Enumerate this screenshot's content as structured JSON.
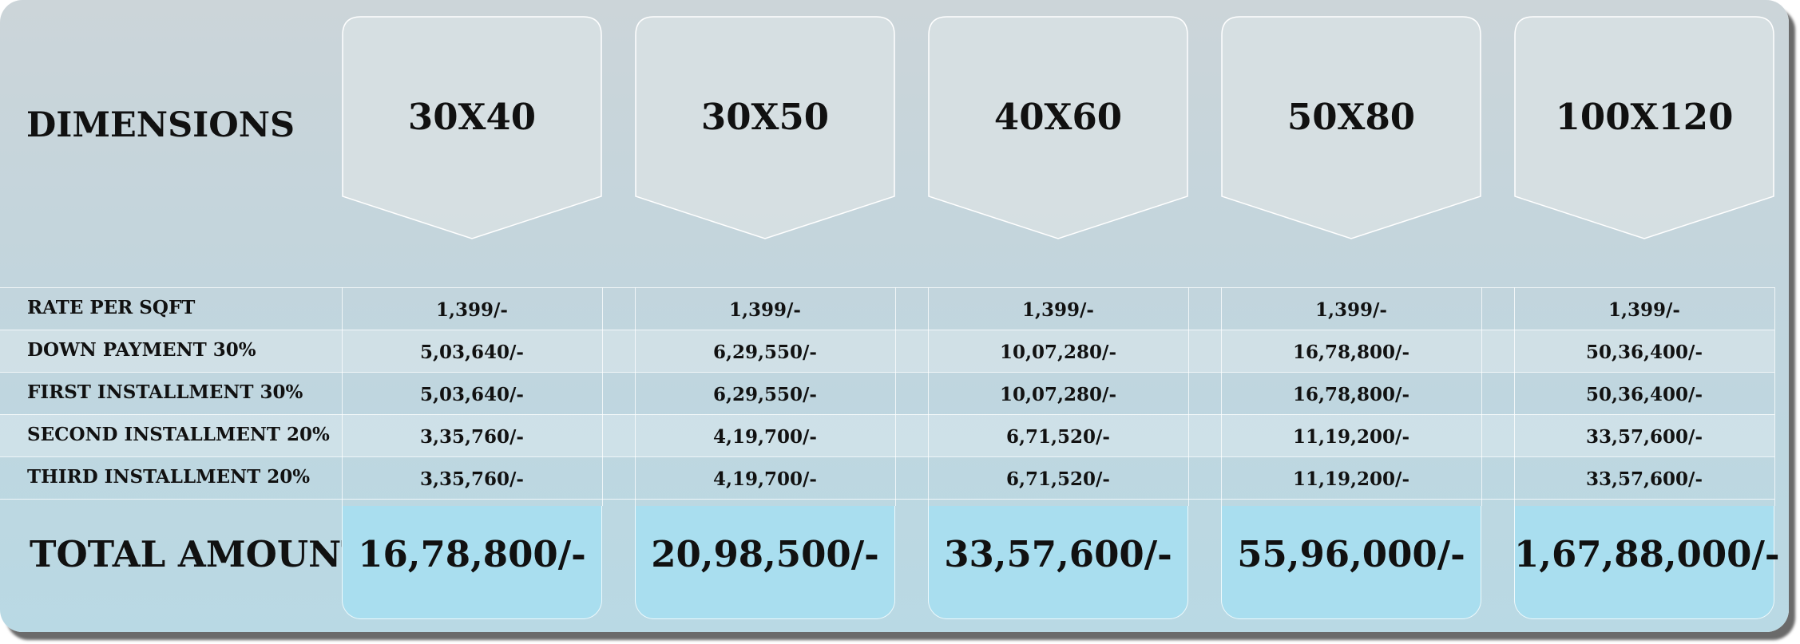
{
  "header": {
    "label": "DIMENSIONS",
    "columns": [
      "30X40",
      "30X50",
      "40X60",
      "50X80",
      "100X120"
    ]
  },
  "rows": [
    {
      "label": "RATE PER SQFT",
      "values": [
        "1,399/-",
        "1,399/-",
        "1,399/-",
        "1,399/-",
        "1,399/-"
      ]
    },
    {
      "label": "DOWN PAYMENT 30%",
      "values": [
        "5,03,640/-",
        "6,29,550/-",
        "10,07,280/-",
        "16,78,800/-",
        "50,36,400/-"
      ]
    },
    {
      "label": "FIRST INSTALLMENT 30%",
      "values": [
        "5,03,640/-",
        "6,29,550/-",
        "10,07,280/-",
        "16,78,800/-",
        "50,36,400/-"
      ]
    },
    {
      "label": "SECOND INSTALLMENT 20%",
      "values": [
        "3,35,760/-",
        "4,19,700/-",
        "6,71,520/-",
        "11,19,200/-",
        "33,57,600/-"
      ]
    },
    {
      "label": "THIRD INSTALLMENT 20%",
      "values": [
        "3,35,760/-",
        "4,19,700/-",
        "6,71,520/-",
        "11,19,200/-",
        "33,57,600/-"
      ]
    }
  ],
  "total": {
    "label": "TOTAL AMOUNT",
    "values": [
      "16,78,800/-",
      "20,98,500/-",
      "33,57,600/-",
      "55,96,000/-",
      "1,67,88,000/-"
    ]
  },
  "colors": {
    "total_fill": "#a9deef",
    "arrow_fill": "#d8e0e3"
  }
}
